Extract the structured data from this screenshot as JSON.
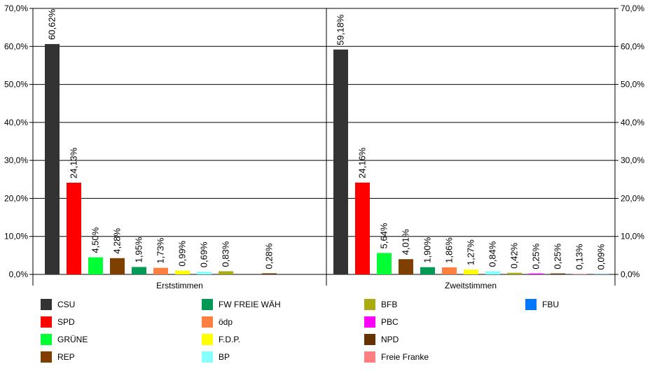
{
  "chart_data": {
    "type": "bar",
    "ylim": [
      0,
      70
    ],
    "y_ticks": [
      "0,0%",
      "10,0%",
      "20,0%",
      "30,0%",
      "40,0%",
      "50,0%",
      "60,0%",
      "70,0%"
    ],
    "grid": true,
    "legend_position": "bottom",
    "panels": [
      {
        "xlabel": "Erststimmen",
        "bars": [
          {
            "party": "CSU",
            "value": 60.62,
            "label": "60,62%"
          },
          {
            "party": "SPD",
            "value": 24.13,
            "label": "24,13%"
          },
          {
            "party": "GRÜNE",
            "value": 4.5,
            "label": "4,50%"
          },
          {
            "party": "REP",
            "value": 4.28,
            "label": "4,28%"
          },
          {
            "party": "FW FREIE WÄH",
            "value": 1.95,
            "label": "1,95%"
          },
          {
            "party": "ödp",
            "value": 1.73,
            "label": "1,73%"
          },
          {
            "party": "F.D.P.",
            "value": 0.99,
            "label": "0,99%"
          },
          {
            "party": "BP",
            "value": 0.69,
            "label": "0,69%"
          },
          {
            "party": "BFB",
            "value": 0.83,
            "label": "0,83%"
          },
          {
            "party": "PBC",
            "value": null,
            "label": ""
          },
          {
            "party": "NPD",
            "value": 0.28,
            "label": "0,28%"
          }
        ]
      },
      {
        "xlabel": "Zweitstimmen",
        "bars": [
          {
            "party": "CSU",
            "value": 59.18,
            "label": "59,18%"
          },
          {
            "party": "SPD",
            "value": 24.16,
            "label": "24,16%"
          },
          {
            "party": "GRÜNE",
            "value": 5.64,
            "label": "5,64%"
          },
          {
            "party": "REP",
            "value": 4.01,
            "label": "4,01%"
          },
          {
            "party": "FW FREIE WÄH",
            "value": 1.9,
            "label": "1,90%"
          },
          {
            "party": "ödp",
            "value": 1.86,
            "label": "1,86%"
          },
          {
            "party": "F.D.P.",
            "value": 1.27,
            "label": "1,27%"
          },
          {
            "party": "BP",
            "value": 0.84,
            "label": "0,84%"
          },
          {
            "party": "BFB",
            "value": 0.42,
            "label": "0,42%"
          },
          {
            "party": "PBC",
            "value": 0.25,
            "label": "0,25%"
          },
          {
            "party": "NPD",
            "value": 0.25,
            "label": "0,25%"
          },
          {
            "party": "Freie Franke",
            "value": 0.13,
            "label": "0,13%"
          },
          {
            "party": "FBU",
            "value": 0.09,
            "label": "0,09%"
          }
        ]
      }
    ],
    "legend": [
      {
        "name": "CSU",
        "color": "#333333"
      },
      {
        "name": "SPD",
        "color": "#ff0000"
      },
      {
        "name": "GRÜNE",
        "color": "#00ff33"
      },
      {
        "name": "REP",
        "color": "#7f3f00"
      },
      {
        "name": "FW FREIE WÄH",
        "color": "#009955"
      },
      {
        "name": "ödp",
        "color": "#ff7f40"
      },
      {
        "name": "F.D.P.",
        "color": "#ffff00"
      },
      {
        "name": "BP",
        "color": "#88ffff"
      },
      {
        "name": "BFB",
        "color": "#aaaa11"
      },
      {
        "name": "PBC",
        "color": "#ff00ff"
      },
      {
        "name": "NPD",
        "color": "#663300"
      },
      {
        "name": "Freie Franke",
        "color": "#ff8080"
      },
      {
        "name": "FBU",
        "color": "#0077ff"
      }
    ]
  }
}
